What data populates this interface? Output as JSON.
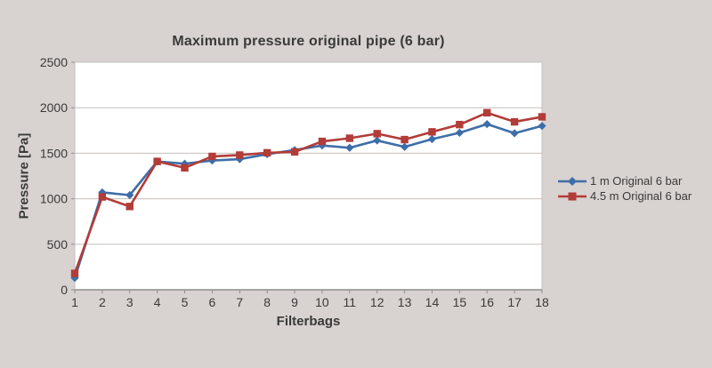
{
  "figure": {
    "background": "#d8d2d0",
    "plot_background": "#ffffff",
    "gridline_color": "#c4c0bd",
    "axis_line_color": "#8f8d8a",
    "text_color": "#3a3a38"
  },
  "chart_data": {
    "type": "line",
    "title": "Maximum pressure original pipe (6 bar)",
    "xlabel": "Filterbags",
    "ylabel": "Pressure [Pa]",
    "x": [
      1,
      2,
      3,
      4,
      5,
      6,
      7,
      8,
      9,
      10,
      11,
      12,
      13,
      14,
      15,
      16,
      17,
      18
    ],
    "series": [
      {
        "name": "1 m Original 6 bar",
        "color": "#3e6ea8",
        "marker": "diamond",
        "values": [
          130,
          1070,
          1040,
          1410,
          1385,
          1420,
          1435,
          1490,
          1535,
          1585,
          1560,
          1640,
          1570,
          1655,
          1725,
          1820,
          1720,
          1800
        ]
      },
      {
        "name": "4.5 m Original 6 bar",
        "color": "#b23c38",
        "marker": "square",
        "values": [
          180,
          1020,
          915,
          1410,
          1340,
          1465,
          1480,
          1505,
          1515,
          1630,
          1665,
          1715,
          1650,
          1735,
          1815,
          1945,
          1845,
          1900
        ]
      }
    ],
    "ylim": [
      0,
      2500
    ],
    "yticks": [
      0,
      500,
      1000,
      1500,
      2000,
      2500
    ],
    "grid": true,
    "legend_position": "right"
  }
}
